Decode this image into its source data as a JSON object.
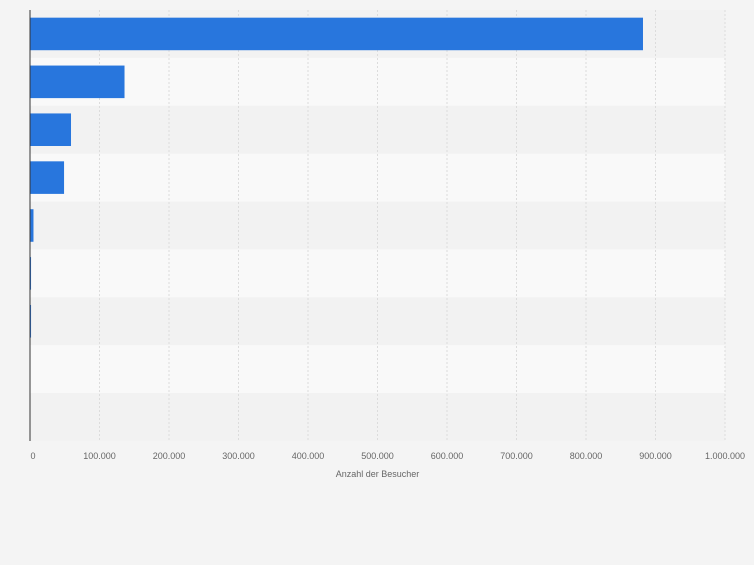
{
  "chart_data": {
    "type": "bar",
    "orientation": "horizontal",
    "categories": [
      "",
      "",
      "",
      "",
      "",
      "",
      "",
      "",
      ""
    ],
    "values": [
      882000,
      136000,
      59000,
      49000,
      5000,
      1500,
      1500,
      0,
      0
    ],
    "xlabel": "Anzahl der Besucher",
    "xlim": [
      0,
      1000000
    ],
    "xticks": [
      0,
      100000,
      200000,
      300000,
      400000,
      500000,
      600000,
      700000,
      800000,
      900000,
      1000000
    ],
    "xtick_labels": [
      "0",
      "100.000",
      "200.000",
      "300.000",
      "400.000",
      "500.000",
      "600.000",
      "700.000",
      "800.000",
      "900.000",
      "1.000.000"
    ],
    "grid": true,
    "legend": "none",
    "colors": {
      "bar": "#2876dd",
      "band_light": "#f9f9f9",
      "band_dark": "#f2f2f2",
      "grid": "#dcdcdc",
      "text": "#666666"
    }
  }
}
